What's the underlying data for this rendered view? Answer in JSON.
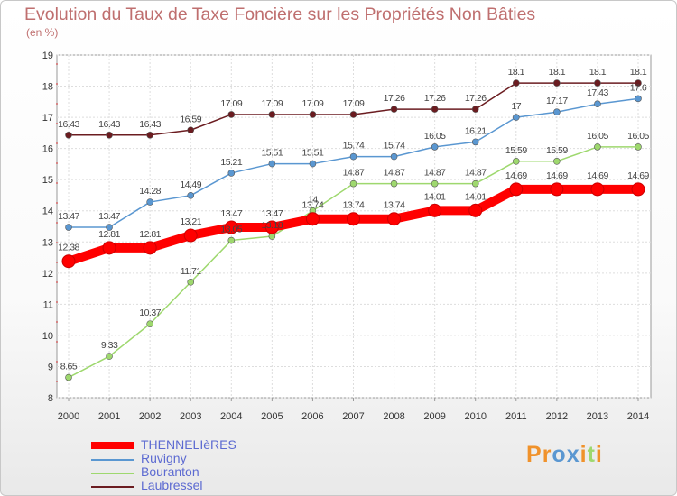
{
  "chart_data": {
    "type": "line",
    "title": "Evolution du Taux de Taxe Foncière sur les Propriétés Non Bâties",
    "ylabel": "(en %)",
    "xlabel": "",
    "ylim": [
      8,
      19
    ],
    "yticks": [
      "8",
      "9",
      "10",
      "11",
      "12",
      "13",
      "14",
      "15",
      "16",
      "17",
      "18",
      "19"
    ],
    "categories": [
      "2000",
      "2001",
      "2002",
      "2003",
      "2004",
      "2005",
      "2006",
      "2007",
      "2008",
      "2009",
      "2010",
      "2011",
      "2012",
      "2013",
      "2014"
    ],
    "series": [
      {
        "name": "Laubressel",
        "color": "#6b1c20",
        "values": [
          16.43,
          16.43,
          16.43,
          16.59,
          17.09,
          17.09,
          17.09,
          17.09,
          17.26,
          17.26,
          17.26,
          18.1,
          18.1,
          18.1,
          18.1
        ],
        "labels": [
          "16.43",
          "16.43",
          "16.43",
          "16.59",
          "17.09",
          "17.09",
          "17.09",
          "17.09",
          "17.26",
          "17.26",
          "17.26",
          "18.1",
          "18.1",
          "18.1",
          "18.1"
        ]
      },
      {
        "name": "Ruvigny",
        "color": "#5a97d1",
        "values": [
          13.47,
          13.47,
          14.28,
          14.49,
          15.21,
          15.51,
          15.51,
          15.74,
          15.74,
          16.05,
          16.21,
          17,
          17.17,
          17.43,
          17.6
        ],
        "labels": [
          "13.47",
          "13.47",
          "14.28",
          "14.49",
          "15.21",
          "15.51",
          "15.51",
          "15.74",
          "15.74",
          "16.05",
          "16.21",
          "17",
          "17.17",
          "17.43",
          "17.6"
        ]
      },
      {
        "name": "Bouranton",
        "color": "#9ed86e",
        "values": [
          8.65,
          9.33,
          10.37,
          11.71,
          13.05,
          13.18,
          14,
          14.87,
          14.87,
          14.87,
          14.87,
          15.59,
          15.59,
          16.05,
          16.05
        ],
        "labels": [
          "8.65",
          "9.33",
          "10.37",
          "11.71",
          "13.05",
          "13.18",
          "14",
          "14.87",
          "14.87",
          "14.87",
          "14.87",
          "15.59",
          "15.59",
          "16.05",
          "16.05"
        ]
      },
      {
        "name": "THENNELIèRES",
        "color": "#ff0000",
        "values": [
          12.38,
          12.81,
          12.81,
          13.21,
          13.47,
          13.47,
          13.74,
          13.74,
          13.74,
          14.01,
          14.01,
          14.69,
          14.69,
          14.69,
          14.69
        ],
        "labels": [
          "12.38",
          "12.81",
          "12.81",
          "13.21",
          "13.47",
          "13.47",
          "13.74",
          "13.74",
          "13.74",
          "14.01",
          "14.01",
          "14.69",
          "14.69",
          "14.69",
          "14.69"
        ]
      }
    ]
  },
  "legend": {
    "items": [
      {
        "label": "THENNELIèRES",
        "color": "#ff0000"
      },
      {
        "label": "Ruvigny",
        "color": "#5a97d1"
      },
      {
        "label": "Bouranton",
        "color": "#9ed86e"
      },
      {
        "label": "Laubressel",
        "color": "#6b1c20"
      }
    ]
  },
  "logo": {
    "text": "Proxiti"
  }
}
